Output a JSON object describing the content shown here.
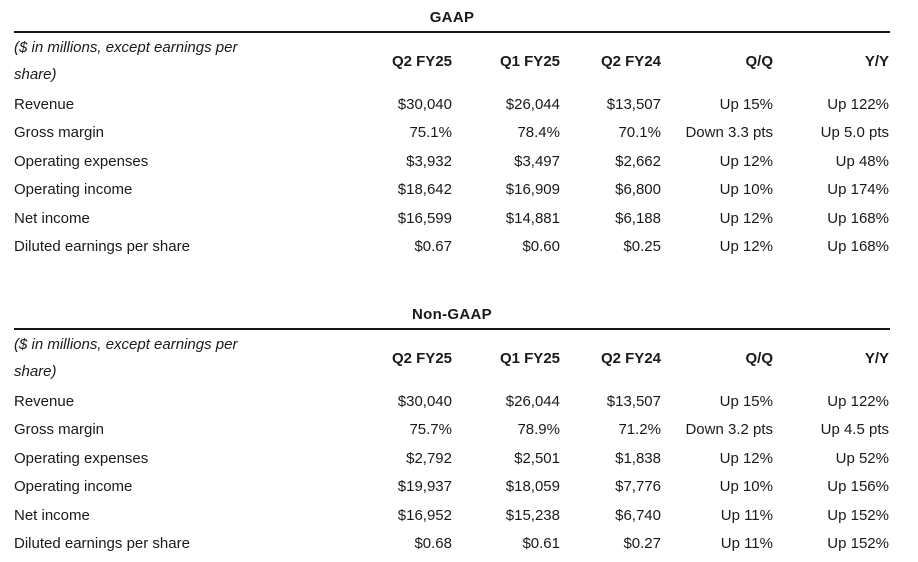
{
  "colors": {
    "text": "#1a1a1a",
    "rule": "#161616",
    "background": "#ffffff"
  },
  "tables": [
    {
      "title": "GAAP",
      "note": "($ in millions, except earnings per share)",
      "columns": [
        "Q2 FY25",
        "Q1 FY25",
        "Q2 FY24",
        "Q/Q",
        "Y/Y"
      ],
      "rows": [
        {
          "label": "Revenue",
          "values": [
            "$30,040",
            "$26,044",
            "$13,507",
            "Up 15%",
            "Up 122%"
          ]
        },
        {
          "label": "Gross margin",
          "values": [
            "75.1%",
            "78.4%",
            "70.1%",
            "Down 3.3 pts",
            "Up 5.0 pts"
          ]
        },
        {
          "label": "Operating expenses",
          "values": [
            "$3,932",
            "$3,497",
            "$2,662",
            "Up 12%",
            "Up 48%"
          ]
        },
        {
          "label": "Operating income",
          "values": [
            "$18,642",
            "$16,909",
            "$6,800",
            "Up 10%",
            "Up 174%"
          ]
        },
        {
          "label": "Net income",
          "values": [
            "$16,599",
            "$14,881",
            "$6,188",
            "Up 12%",
            "Up 168%"
          ]
        },
        {
          "label": "Diluted earnings per share",
          "values": [
            "$0.67",
            "$0.60",
            "$0.25",
            "Up 12%",
            "Up 168%"
          ]
        }
      ]
    },
    {
      "title": "Non-GAAP",
      "note": "($ in millions, except earnings per share)",
      "columns": [
        "Q2 FY25",
        "Q1 FY25",
        "Q2 FY24",
        "Q/Q",
        "Y/Y"
      ],
      "rows": [
        {
          "label": "Revenue",
          "values": [
            "$30,040",
            "$26,044",
            "$13,507",
            "Up 15%",
            "Up 122%"
          ]
        },
        {
          "label": "Gross margin",
          "values": [
            "75.7%",
            "78.9%",
            "71.2%",
            "Down 3.2 pts",
            "Up 4.5 pts"
          ]
        },
        {
          "label": "Operating expenses",
          "values": [
            "$2,792",
            "$2,501",
            "$1,838",
            "Up 12%",
            "Up 52%"
          ]
        },
        {
          "label": "Operating income",
          "values": [
            "$19,937",
            "$18,059",
            "$7,776",
            "Up 10%",
            "Up 156%"
          ]
        },
        {
          "label": "Net income",
          "values": [
            "$16,952",
            "$15,238",
            "$6,740",
            "Up 11%",
            "Up 152%"
          ]
        },
        {
          "label": "Diluted earnings per share",
          "values": [
            "$0.68",
            "$0.61",
            "$0.27",
            "Up 11%",
            "Up 152%"
          ]
        }
      ]
    }
  ]
}
